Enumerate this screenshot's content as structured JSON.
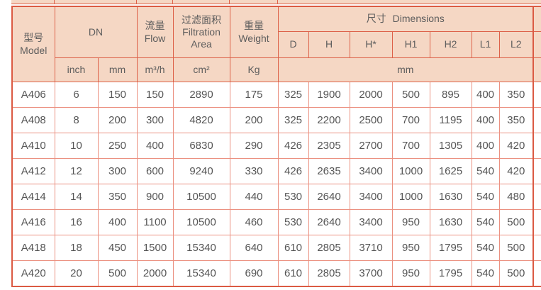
{
  "colors": {
    "header_bg": "#f5d7c4",
    "border_strong": "#dd6149",
    "border_light": "#eb9181",
    "text": "#565656"
  },
  "table": {
    "header": {
      "model": {
        "zh": "型号",
        "en": "Model"
      },
      "dn_label": "DN",
      "flow": {
        "zh": "流量",
        "en": "Flow"
      },
      "filtration_area": {
        "zh": "过滤面积",
        "en": "Filtration Area"
      },
      "weight": {
        "zh": "重量",
        "en": "Weight"
      },
      "dimensions": {
        "zh": "尺寸",
        "en": "Dimensions"
      },
      "dimension_columns": [
        "D",
        "H",
        "H*",
        "H1",
        "H2",
        "L1",
        "L2"
      ],
      "units": {
        "dn_inch": "inch",
        "dn_mm": "mm",
        "flow": "m³/h",
        "filtration_area": "cm²",
        "weight": "Kg",
        "dimensions": "mm"
      }
    },
    "rows": [
      [
        "A406",
        "6",
        "150",
        "150",
        "2890",
        "175",
        "325",
        "1900",
        "2000",
        "500",
        "895",
        "400",
        "350"
      ],
      [
        "A408",
        "8",
        "200",
        "300",
        "4820",
        "200",
        "325",
        "2200",
        "2500",
        "700",
        "1195",
        "400",
        "350"
      ],
      [
        "A410",
        "10",
        "250",
        "400",
        "6830",
        "290",
        "426",
        "2305",
        "2700",
        "700",
        "1305",
        "400",
        "420"
      ],
      [
        "A412",
        "12",
        "300",
        "600",
        "9240",
        "330",
        "426",
        "2635",
        "3400",
        "1000",
        "1625",
        "540",
        "420"
      ],
      [
        "A414",
        "14",
        "350",
        "900",
        "10500",
        "440",
        "530",
        "2640",
        "3400",
        "1000",
        "1630",
        "540",
        "480"
      ],
      [
        "A416",
        "16",
        "400",
        "1100",
        "10500",
        "460",
        "530",
        "2640",
        "3400",
        "950",
        "1630",
        "540",
        "500"
      ],
      [
        "A418",
        "18",
        "450",
        "1500",
        "15340",
        "640",
        "610",
        "2805",
        "3710",
        "950",
        "1795",
        "540",
        "500"
      ],
      [
        "A420",
        "20",
        "500",
        "2000",
        "15340",
        "690",
        "610",
        "2805",
        "3700",
        "950",
        "1795",
        "540",
        "500"
      ]
    ]
  }
}
